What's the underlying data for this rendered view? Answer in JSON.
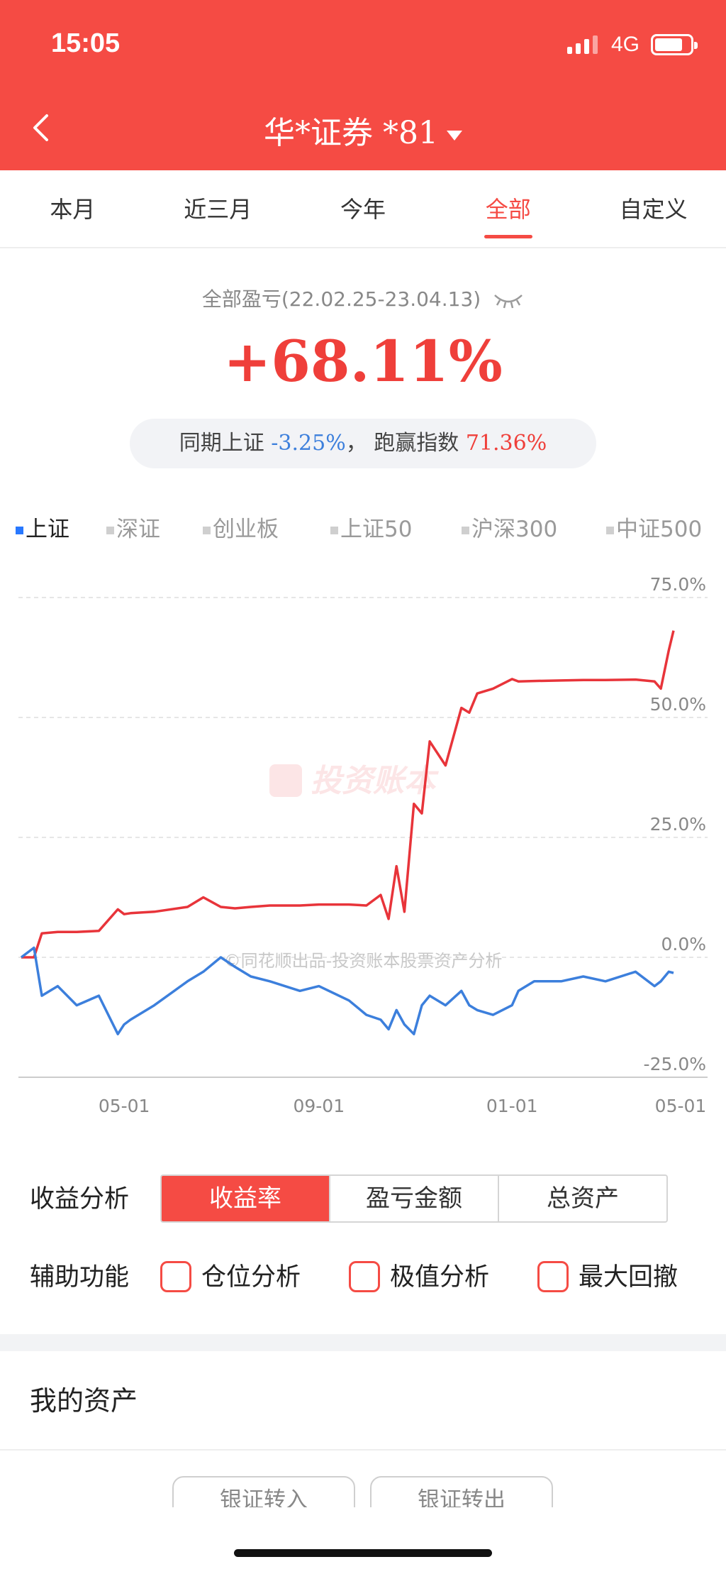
{
  "status": {
    "time": "15:05",
    "network": "4G"
  },
  "nav": {
    "title": "华*证券 *81"
  },
  "tabs": [
    "本月",
    "近三月",
    "今年",
    "全部",
    "自定义"
  ],
  "active_tab": "全部",
  "summary": {
    "label": "全部盈亏(22.02.25-23.04.13)",
    "value": "+68.11%",
    "compare_label": "同期上证",
    "compare_value": "-3.25%",
    "separator": "，",
    "beat_label": "跑赢指数",
    "beat_value": "71.36%"
  },
  "index_tabs": [
    "上证",
    "深证",
    "创业板",
    "上证50",
    "沪深300",
    "中证500"
  ],
  "active_index": "上证",
  "chart_data": {
    "type": "line",
    "x": [
      "2022-02-25",
      "2022-03-05",
      "2022-03-10",
      "2022-03-20",
      "2022-04-01",
      "2022-04-15",
      "2022-04-27",
      "2022-05-01",
      "2022-05-05",
      "2022-05-20",
      "2022-06-10",
      "2022-06-20",
      "2022-07-01",
      "2022-07-10",
      "2022-07-20",
      "2022-08-01",
      "2022-08-20",
      "2022-09-01",
      "2022-09-20",
      "2022-10-01",
      "2022-10-10",
      "2022-10-15",
      "2022-10-20",
      "2022-10-25",
      "2022-10-31",
      "2022-11-05",
      "2022-11-10",
      "2022-11-20",
      "2022-11-30",
      "2022-12-05",
      "2022-12-10",
      "2022-12-20",
      "2023-01-01",
      "2023-01-05",
      "2023-01-15",
      "2023-02-01",
      "2023-02-15",
      "2023-03-01",
      "2023-03-20",
      "2023-04-01",
      "2023-04-05",
      "2023-04-10",
      "2023-04-13"
    ],
    "series": [
      {
        "name": "",
        "color": "#e8343a",
        "values": [
          0,
          0,
          5,
          5.3,
          5.3,
          5.5,
          10,
          9,
          9.2,
          9.5,
          10.5,
          12.5,
          10.5,
          10.2,
          10.5,
          10.8,
          10.8,
          11,
          11,
          10.8,
          13,
          8,
          19,
          9.5,
          32,
          30,
          45,
          40,
          52,
          51,
          55,
          56,
          58,
          57.5,
          57.6,
          57.7,
          57.8,
          57.8,
          57.9,
          57.5,
          56,
          64,
          68.11
        ]
      },
      {
        "name": "",
        "color": "#3c7fdc",
        "values": [
          0,
          2,
          -8,
          -6,
          -10,
          -8,
          -16,
          -14,
          -13,
          -10,
          -5,
          -3,
          0,
          -2,
          -4,
          -5,
          -7,
          -6,
          -9,
          -12,
          -13,
          -15,
          -11,
          -14,
          -16,
          -10,
          -8,
          -10,
          -7,
          -10,
          -11,
          -12,
          -10,
          -7,
          -5,
          -5,
          -4,
          -5,
          -3,
          -6,
          -5,
          -3,
          -3.25
        ]
      }
    ],
    "xticks": [
      "05-01",
      "09-01",
      "01-01",
      "05-01"
    ],
    "yticks": [
      "75.0%",
      "50.0%",
      "25.0%",
      "0.0%",
      "-25.0%"
    ],
    "ylim": [
      -25,
      75
    ],
    "watermark": "投资账本",
    "copyright": "©同花顺出品-投资账本股票资产分析",
    "grid": true
  },
  "analysis": {
    "label": "收益分析",
    "options": [
      "收益率",
      "盈亏金额",
      "总资产"
    ],
    "active": "收益率"
  },
  "aux": {
    "label": "辅助功能",
    "options": [
      "仓位分析",
      "极值分析",
      "最大回撤"
    ]
  },
  "assets": {
    "title": "我的资产",
    "buttons": [
      "银证转入",
      "银证转出"
    ]
  },
  "colors": {
    "brand": "#f54b44",
    "positive": "#ef3f3a",
    "negative": "#3c7fdc"
  }
}
